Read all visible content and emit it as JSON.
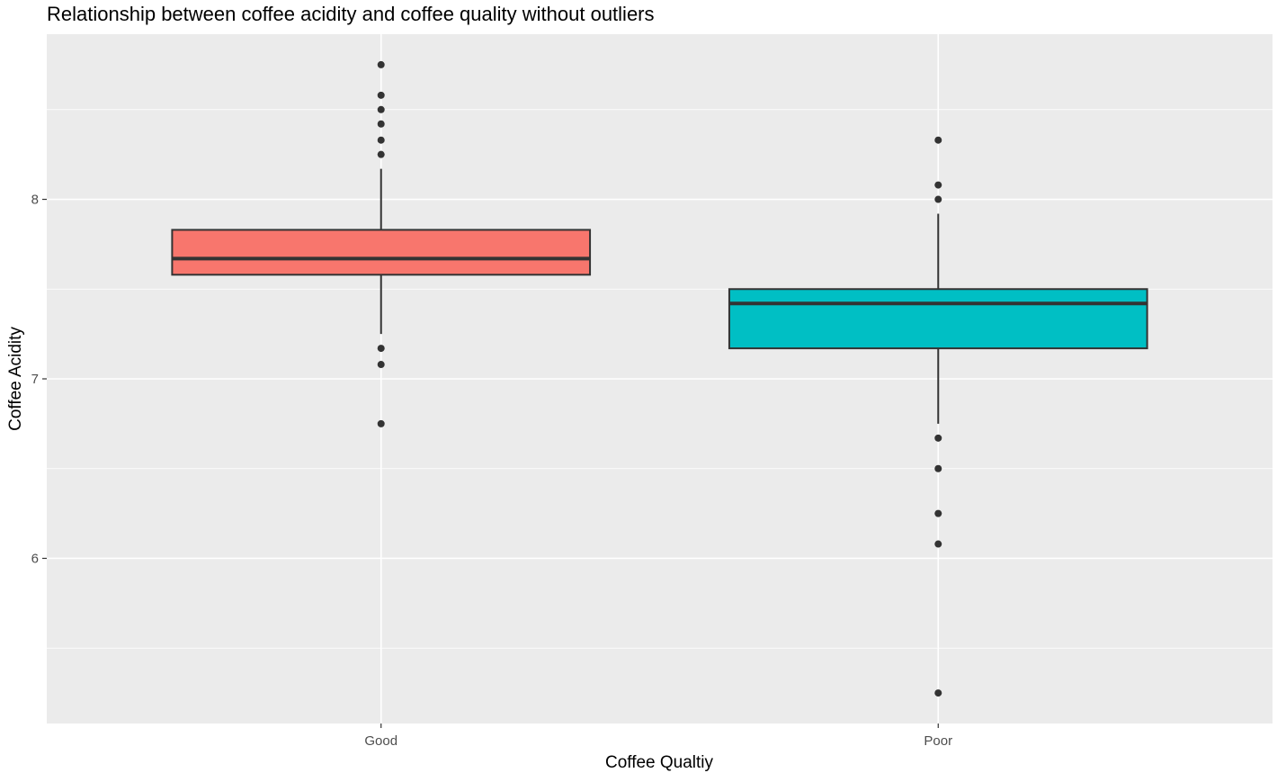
{
  "chart_data": {
    "type": "box",
    "title": "Relationship between coffee acidity and coffee quality without outliers",
    "xlabel": "Coffee Qualtiy",
    "ylabel": "Coffee Acidity",
    "categories": [
      "Good",
      "Poor"
    ],
    "ylim": [
      5.08,
      8.92
    ],
    "yticks": [
      6,
      7,
      8
    ],
    "grid": true,
    "legend": "none",
    "boxes": [
      {
        "category": "Good",
        "fill": "#F8766D",
        "whisker_low": 7.25,
        "q1": 7.58,
        "median": 7.67,
        "q3": 7.83,
        "whisker_high": 8.17,
        "outliers": [
          8.75,
          8.58,
          8.5,
          8.42,
          8.33,
          8.25,
          7.17,
          7.08,
          6.75
        ]
      },
      {
        "category": "Poor",
        "fill": "#00BFC4",
        "whisker_low": 6.75,
        "q1": 7.17,
        "median": 7.42,
        "q3": 7.5,
        "whisker_high": 7.92,
        "outliers": [
          8.33,
          8.08,
          8.0,
          6.67,
          6.5,
          6.25,
          6.08,
          5.25
        ]
      }
    ]
  }
}
